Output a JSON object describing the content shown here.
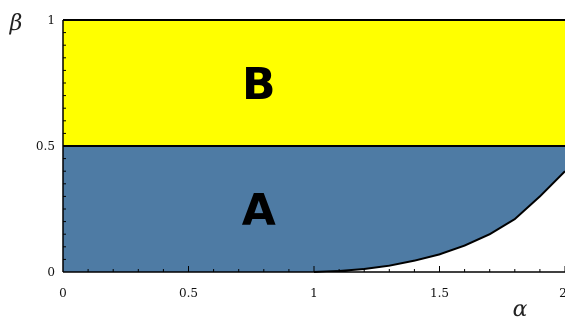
{
  "chart_data": {
    "type": "area",
    "xlabel": "α",
    "ylabel": "β",
    "xlim": [
      0,
      2
    ],
    "ylim": [
      0,
      1
    ],
    "x_ticks": [
      {
        "value": 0,
        "label": "0"
      },
      {
        "value": 0.5,
        "label": "0.5"
      },
      {
        "value": 1,
        "label": "1"
      },
      {
        "value": 1.5,
        "label": "1.5"
      },
      {
        "value": 2,
        "label": "2"
      }
    ],
    "y_ticks": [
      {
        "value": 0,
        "label": "0"
      },
      {
        "value": 0.5,
        "label": "0.5"
      },
      {
        "value": 1,
        "label": "1"
      }
    ],
    "regions": [
      {
        "name": "A",
        "label": "A",
        "color": "#4E7BA4",
        "description_bounds": "beta from 0 to 0.5, left of boundary curve",
        "label_at": {
          "x": 0.78,
          "y": 0.25
        }
      },
      {
        "name": "B",
        "label": "B",
        "color": "#FFFF00",
        "description_bounds": "beta from 0.5 to 1",
        "label_at": {
          "x": 0.78,
          "y": 0.75
        }
      }
    ],
    "boundary_curve": [
      {
        "x": 1.0,
        "y": 0.0
      },
      {
        "x": 1.1,
        "y": 0.004
      },
      {
        "x": 1.2,
        "y": 0.012
      },
      {
        "x": 1.3,
        "y": 0.025
      },
      {
        "x": 1.4,
        "y": 0.045
      },
      {
        "x": 1.5,
        "y": 0.07
      },
      {
        "x": 1.6,
        "y": 0.105
      },
      {
        "x": 1.7,
        "y": 0.15
      },
      {
        "x": 1.8,
        "y": 0.21
      },
      {
        "x": 1.9,
        "y": 0.3
      },
      {
        "x": 2.0,
        "y": 0.4
      }
    ],
    "hline": 0.5,
    "colors": {
      "A": "#4E7BA4",
      "B": "#FFFF00",
      "line": "#000000"
    }
  }
}
